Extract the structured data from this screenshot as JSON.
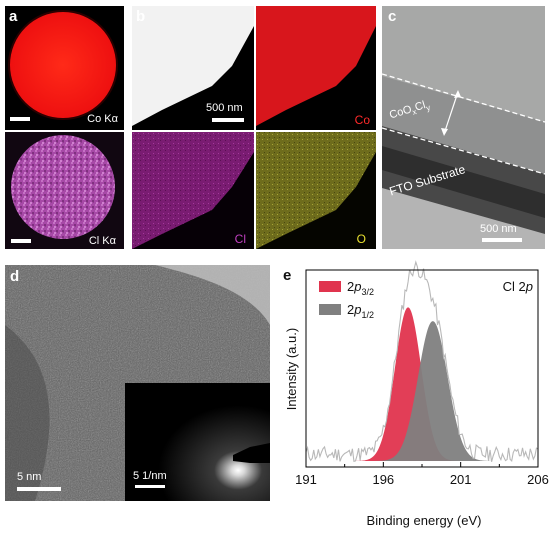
{
  "panels": {
    "a": {
      "label": "a",
      "maps": [
        {
          "element_label": "Co Kα",
          "color": "#ff1a10"
        },
        {
          "element_label": "Cl Kα",
          "color": "#c85ac8"
        }
      ]
    },
    "b": {
      "label": "b",
      "scale_bar": "500 nm",
      "maps": [
        {
          "element_label": "",
          "color": "#f4f4f4"
        },
        {
          "element_label": "Co",
          "color": "#d8161c"
        },
        {
          "element_label": "Cl",
          "color": "#a0259a"
        },
        {
          "element_label": "O",
          "color": "#9c9c2a"
        }
      ]
    },
    "c": {
      "label": "c",
      "layer_label_main": "CoO",
      "layer_label_sub1": "x",
      "layer_label_mid": "Cl",
      "layer_label_sub2": "y",
      "substrate_label": "FTO Substrate",
      "scale_bar": "500 nm"
    },
    "d": {
      "label": "d",
      "scale_bar": "5 nm",
      "inset_scale_bar": "5 1/nm"
    },
    "e": {
      "label": "e",
      "title_main": "Cl 2",
      "title_italic": "p",
      "legend": [
        {
          "name_main": "2",
          "name_italic": "p",
          "name_sub": "3/2",
          "color": "#e0344e"
        },
        {
          "name_main": "2",
          "name_italic": "p",
          "name_sub": "1/2",
          "color": "#808080"
        }
      ]
    }
  },
  "chart_data": {
    "type": "line",
    "xlabel": "Binding energy (eV)",
    "ylabel": "Intensity (a.u.)",
    "xlim": [
      191,
      206
    ],
    "x_ticks": [
      191,
      196,
      201,
      206
    ],
    "grid": false,
    "legend_position": "top-left",
    "series": [
      {
        "name": "2p3/2",
        "peak_center": 197.6,
        "peak_sigma": 0.85,
        "peak_height": 0.78,
        "color": "#e0344e",
        "fill": true
      },
      {
        "name": "2p1/2",
        "peak_center": 199.2,
        "peak_sigma": 0.95,
        "peak_height": 0.71,
        "color": "#808080",
        "fill": true
      },
      {
        "name": "",
        "role": "raw data",
        "color": "#b8b8b8",
        "x_step": 0.1
      }
    ]
  }
}
